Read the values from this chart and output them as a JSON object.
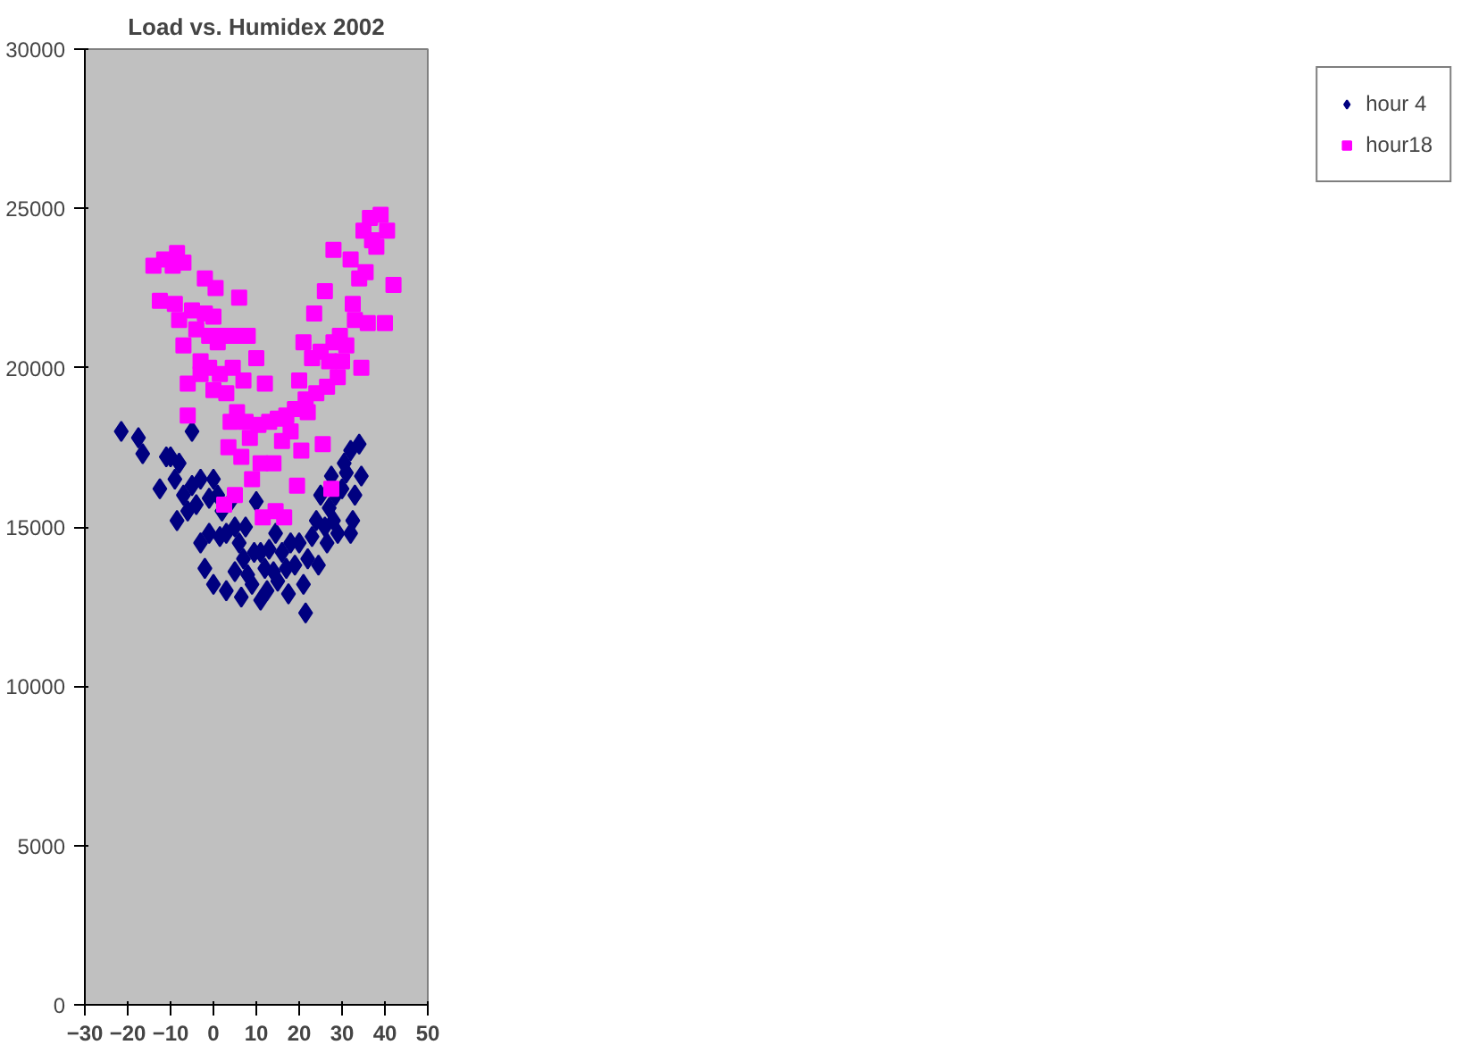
{
  "chart_data": {
    "type": "scatter",
    "title": "Load vs. Humidex 2002",
    "xlim": [
      -30,
      50
    ],
    "xticks": [
      -30,
      -20,
      -10,
      0,
      10,
      20,
      30,
      40,
      50
    ],
    "ylim": [
      0,
      30000
    ],
    "yticks": [
      0,
      5000,
      10000,
      15000,
      20000,
      25000,
      30000
    ],
    "grid": false,
    "legend": "right",
    "series": [
      {
        "name": "hour 4",
        "color": "#000080",
        "marker": "diamond",
        "x": [
          -21.5,
          -17.5,
          -16.5,
          -12.5,
          -11,
          -10,
          -9,
          -8.5,
          -8,
          -7,
          -6,
          -5,
          -5,
          -4,
          -3,
          -3,
          -2,
          -1,
          -1,
          0,
          0,
          1,
          1.5,
          2,
          3,
          3,
          4,
          5,
          5,
          6,
          6.5,
          7,
          7.5,
          8,
          9,
          9.5,
          10,
          11,
          11,
          12,
          12.5,
          13,
          14,
          14.5,
          15,
          16,
          17,
          17.5,
          18,
          19,
          20,
          21,
          21.5,
          22,
          23,
          24,
          24.5,
          25,
          26,
          26.5,
          27,
          27.5,
          28,
          28.5,
          29,
          30,
          30.5,
          31,
          32,
          32.5,
          33,
          34,
          34.5,
          32
        ],
        "values": [
          18000,
          17800,
          17300,
          16200,
          17200,
          17200,
          16500,
          15200,
          17000,
          16000,
          15500,
          18000,
          16300,
          15700,
          16500,
          14500,
          13700,
          15900,
          14800,
          13200,
          16500,
          16000,
          14700,
          15500,
          13000,
          14800,
          15800,
          13600,
          15000,
          14500,
          12800,
          14000,
          15000,
          13500,
          13200,
          14200,
          15800,
          12700,
          14200,
          13700,
          13000,
          14300,
          13600,
          14800,
          13300,
          14200,
          13700,
          12900,
          14500,
          13800,
          14500,
          13200,
          12300,
          14000,
          14700,
          15200,
          13800,
          16000,
          15000,
          14500,
          15600,
          16600,
          15200,
          16000,
          14800,
          16200,
          17000,
          16700,
          17400,
          15200,
          16000,
          17600,
          16600,
          14800
        ]
      },
      {
        "name": "hour18",
        "color": "#ff00ff",
        "marker": "square",
        "x": [
          -14,
          -12.5,
          -11.5,
          -9.5,
          -9,
          -8.5,
          -8,
          -7,
          -7,
          -6,
          -6,
          -5,
          -4,
          -3,
          -3,
          -2,
          -2,
          -1,
          -1,
          0,
          0,
          0.5,
          1,
          1.5,
          2,
          2.5,
          3,
          3.5,
          4,
          4.5,
          5,
          5,
          5.5,
          6,
          6.5,
          7,
          7.5,
          8,
          8.5,
          9,
          10,
          10.5,
          11,
          11.5,
          12,
          13,
          14,
          14.5,
          15,
          16,
          16.5,
          17,
          18,
          19,
          19.5,
          20,
          20.5,
          21,
          21.5,
          22,
          23,
          23.5,
          24,
          25,
          25.5,
          26,
          26.5,
          27,
          27.5,
          28,
          28,
          29,
          29.5,
          30,
          31,
          32,
          32.5,
          33,
          34,
          34.5,
          35,
          35.5,
          36,
          36.5,
          37,
          38,
          39,
          40,
          40.5,
          42
        ],
        "values": [
          23200,
          22100,
          23400,
          23200,
          22000,
          23600,
          21500,
          23300,
          20700,
          19500,
          18500,
          21800,
          21200,
          20200,
          19800,
          21700,
          22800,
          21000,
          20000,
          21600,
          19300,
          22500,
          20800,
          19800,
          21000,
          15700,
          19200,
          17500,
          18300,
          20000,
          21000,
          16000,
          18600,
          22200,
          17200,
          19600,
          18300,
          21000,
          17800,
          16500,
          20300,
          18200,
          17000,
          15300,
          19500,
          18300,
          17000,
          15500,
          18400,
          17700,
          15300,
          18500,
          18000,
          18700,
          16300,
          19600,
          17400,
          20800,
          19000,
          18600,
          20300,
          21700,
          19200,
          20500,
          17600,
          22400,
          19400,
          20200,
          16200,
          23700,
          20800,
          19700,
          21000,
          20200,
          20700,
          23400,
          22000,
          21500,
          22800,
          20000,
          24300,
          23000,
          21400,
          24700,
          24000,
          23800,
          24800,
          21400,
          24300,
          22600
        ]
      }
    ]
  }
}
